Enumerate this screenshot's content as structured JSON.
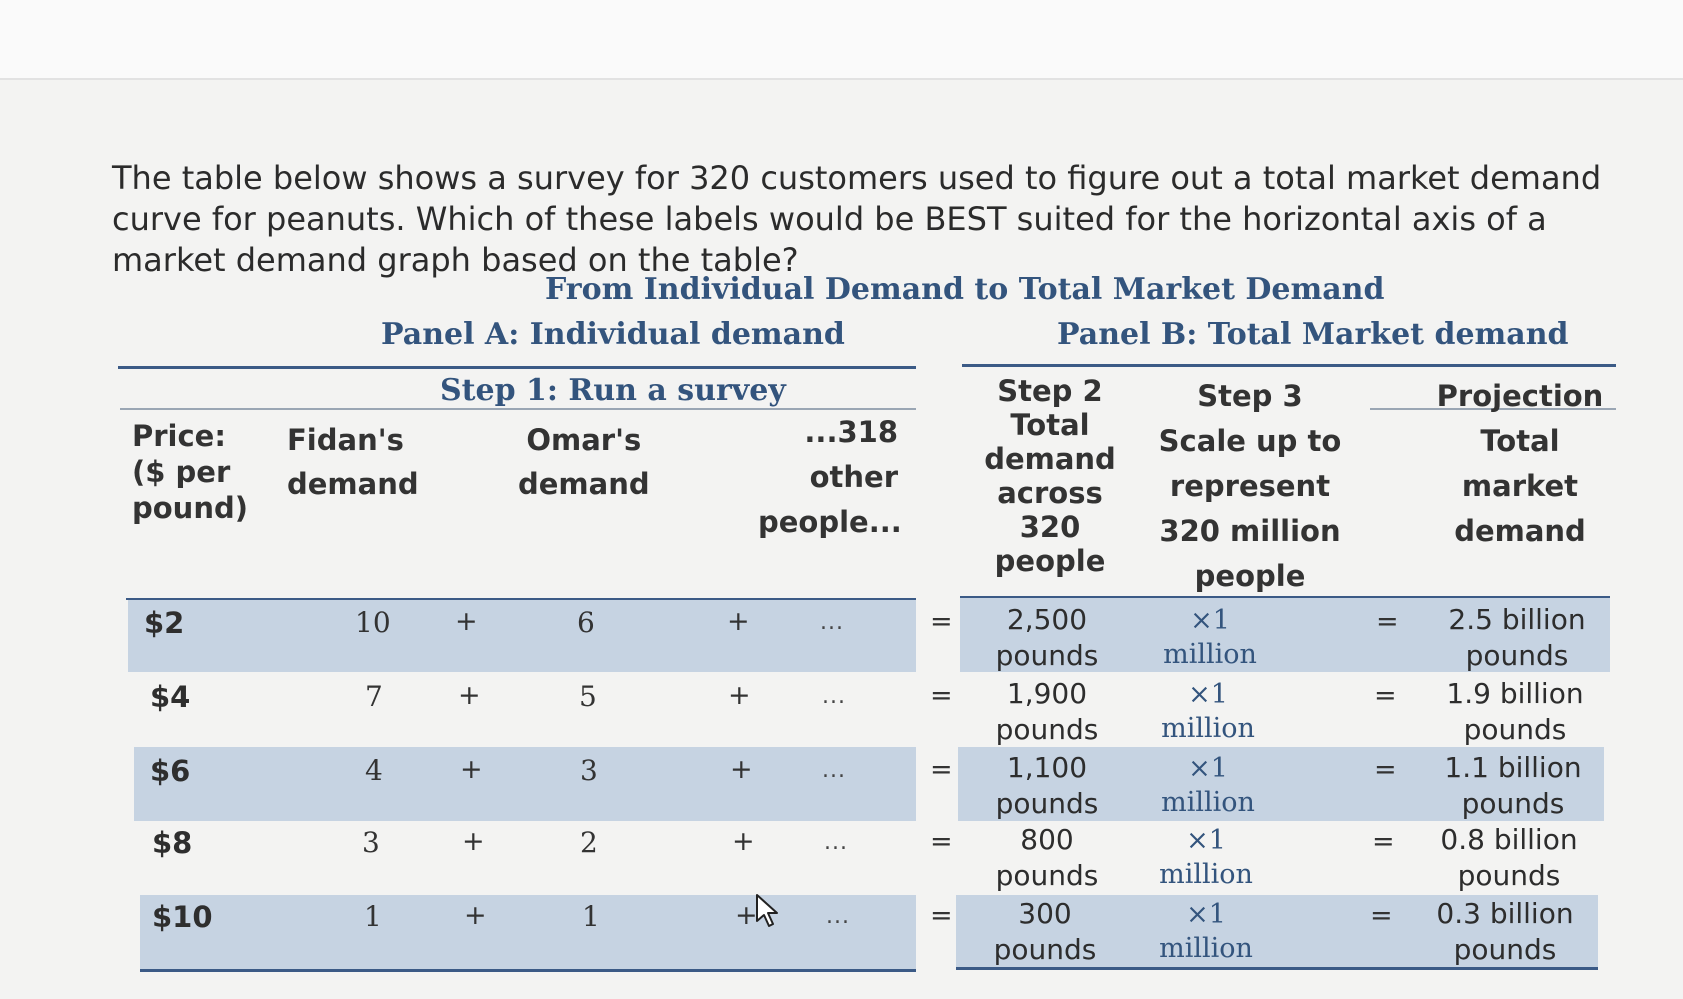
{
  "question": "The table below shows a survey for 320 customers used to figure out a total market demand curve for peanuts. Which of these labels would be BEST suited for the horizontal axis of a market demand graph based on the table?",
  "table": {
    "title": "From Individual Demand to Total Market Demand",
    "panel_a_title": "Panel A: Individual demand",
    "panel_b_title": "Panel B: Total Market demand",
    "step1_label": "Step 1: Run a survey",
    "headers": {
      "price": [
        "Price:",
        "($ per",
        "pound)"
      ],
      "fidan": [
        "Fidan's",
        "demand"
      ],
      "omar": [
        "Omar's",
        "demand"
      ],
      "others": [
        "...318",
        "other",
        "people..."
      ],
      "step2": [
        "Step 2",
        "Total",
        "demand",
        "across",
        "320",
        "people"
      ],
      "step3": [
        "Step 3",
        "Scale up to",
        "represent",
        "320 million",
        "people"
      ],
      "projection": [
        "Projection",
        "Total",
        "market",
        "demand"
      ]
    },
    "rows": [
      {
        "price": "$2",
        "fidan": "10",
        "omar": "6",
        "plus": "+",
        "others": "...",
        "eq": "=",
        "total": [
          "2,500",
          "pounds"
        ],
        "scale": [
          "×1",
          "million"
        ],
        "market": [
          "2.5 billion",
          "pounds"
        ]
      },
      {
        "price": "$4",
        "fidan": "7",
        "omar": "5",
        "plus": "+",
        "others": "...",
        "eq": "=",
        "total": [
          "1,900",
          "pounds"
        ],
        "scale": [
          "×1",
          "million"
        ],
        "market": [
          "1.9 billion",
          "pounds"
        ]
      },
      {
        "price": "$6",
        "fidan": "4",
        "omar": "3",
        "plus": "+",
        "others": "...",
        "eq": "=",
        "total": [
          "1,100",
          "pounds"
        ],
        "scale": [
          "×1",
          "million"
        ],
        "market": [
          "1.1 billion",
          "pounds"
        ]
      },
      {
        "price": "$8",
        "fidan": "3",
        "omar": "2",
        "plus": "+",
        "others": "...",
        "eq": "=",
        "total": [
          "800",
          "pounds"
        ],
        "scale": [
          "×1",
          "million"
        ],
        "market": [
          "0.8 billion",
          "pounds"
        ]
      },
      {
        "price": "$10",
        "fidan": "1",
        "omar": "1",
        "plus": "+",
        "others": "...",
        "eq": "=",
        "total": [
          "300",
          "pounds"
        ],
        "scale": [
          "×1",
          "million"
        ],
        "market": [
          "0.3 billion",
          "pounds"
        ]
      }
    ]
  },
  "colors": {
    "heading": "#33547d",
    "band": "#c6d3e2",
    "rule": "#3b5a86"
  }
}
